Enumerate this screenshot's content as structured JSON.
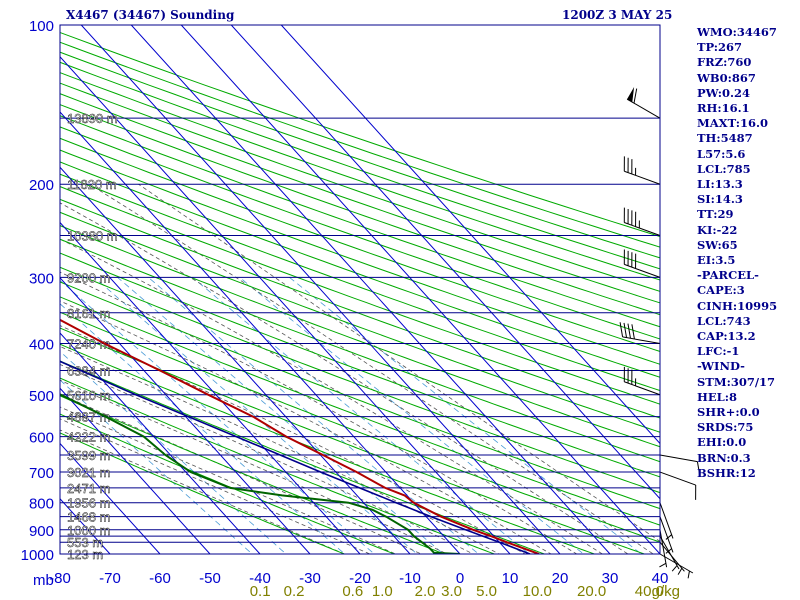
{
  "header": {
    "title_left": "X4467 (34467) Sounding",
    "title_right": "1200Z  3 MAY 25"
  },
  "indices": [
    "WMO:34467",
    "TP:267",
    "FRZ:760",
    "WB0:867",
    "PW:0.24",
    "RH:16.1",
    "MAXT:16.0",
    "TH:5487",
    "L57:5.6",
    "LCL:785",
    "LI:13.3",
    "SI:14.3",
    "TT:29",
    "KI:-22",
    "SW:65",
    "EI:3.5",
    "-PARCEL-",
    "CAPE:3",
    "CINH:10995",
    "LCL:743",
    "CAP:13.2",
    "LFC:-1",
    "-WIND-",
    "STM:307/17",
    "HEL:8",
    "SHR+:0.0",
    "SRDS:75",
    "EHI:0.0",
    "BRN:0.3",
    "BSHR:12"
  ],
  "colors": {
    "isobar": "#00008b",
    "isotherm": "#0000cd",
    "dry_adiabat": "#00aa00",
    "moist_adiabat": "#555555",
    "mixing_ratio": "#4a9bd6",
    "temperature": "#b00000",
    "dewpoint": "#006400",
    "parcel": "#00008b",
    "pressure_labels": "#0000cd",
    "temp_labels": "#0000cd",
    "mixing_labels": "#808000",
    "height_labels": "#ffffff",
    "wind_barbs": "#000000"
  },
  "chart_data": {
    "type": "skew-t",
    "pressure_axis_label": "mb",
    "pressure_range": [
      100,
      1000
    ],
    "pressure_labels": [
      100,
      200,
      300,
      400,
      500,
      600,
      700,
      800,
      900,
      1000
    ],
    "isobars": [
      100,
      150,
      200,
      250,
      300,
      350,
      400,
      450,
      500,
      550,
      600,
      650,
      700,
      750,
      800,
      850,
      900,
      925,
      950,
      1000
    ],
    "temperature_ticks": [
      -80,
      -70,
      -60,
      -50,
      -40,
      -30,
      -20,
      -10,
      0,
      10,
      20,
      30,
      40
    ],
    "temperature_tick_labels": [
      "-80",
      "-70",
      "-60",
      "-50",
      "-40",
      "-30",
      "-20",
      "-10",
      "0",
      "10",
      "20",
      "30",
      "40"
    ],
    "temperature_axis_range": [
      -80,
      40
    ],
    "mixing_ratio_labels": [
      "0.1",
      "0.2",
      "0.6",
      "1.0",
      "2.0",
      "3.0",
      "5.0",
      "10.0",
      "20.0",
      "40.0",
      "g/kg"
    ],
    "heights": [
      {
        "p": 150,
        "label": "13890 m"
      },
      {
        "p": 200,
        "label": "11820 m"
      },
      {
        "p": 250,
        "label": "10380 m"
      },
      {
        "p": 300,
        "label": "9200 m"
      },
      {
        "p": 350,
        "label": "8161 m"
      },
      {
        "p": 400,
        "label": "7240 m"
      },
      {
        "p": 450,
        "label": "6384 m"
      },
      {
        "p": 500,
        "label": "5610 m"
      },
      {
        "p": 550,
        "label": "4887 m"
      },
      {
        "p": 600,
        "label": "4222 m"
      },
      {
        "p": 650,
        "label": "3599 m"
      },
      {
        "p": 700,
        "label": "3021 m"
      },
      {
        "p": 750,
        "label": "2471 m"
      },
      {
        "p": 800,
        "label": "1956 m"
      },
      {
        "p": 850,
        "label": "1468 m"
      },
      {
        "p": 900,
        "label": "1000 m"
      },
      {
        "p": 950,
        "label": "553 m"
      },
      {
        "p": 1000,
        "label": "123 m"
      }
    ],
    "temperature_profile": [
      {
        "p": 1000,
        "t": 15.8
      },
      {
        "p": 950,
        "t": 11.5
      },
      {
        "p": 925,
        "t": 9.4
      },
      {
        "p": 900,
        "t": 7.0
      },
      {
        "p": 850,
        "t": 3.0
      },
      {
        "p": 800,
        "t": 0.0
      },
      {
        "p": 775,
        "t": -0.5
      },
      {
        "p": 750,
        "t": -3.0
      },
      {
        "p": 700,
        "t": -5.8
      },
      {
        "p": 650,
        "t": -9.5
      },
      {
        "p": 600,
        "t": -13.5
      },
      {
        "p": 550,
        "t": -16.5
      },
      {
        "p": 500,
        "t": -21.5
      },
      {
        "p": 450,
        "t": -26.8
      },
      {
        "p": 400,
        "t": -33.0
      },
      {
        "p": 350,
        "t": -39.0
      },
      {
        "p": 300,
        "t": -47.0
      },
      {
        "p": 275,
        "t": -50.0
      },
      {
        "p": 262,
        "t": -52.0
      },
      {
        "p": 250,
        "t": -52.3
      },
      {
        "p": 230,
        "t": -53.0
      },
      {
        "p": 210,
        "t": -54.0
      },
      {
        "p": 200,
        "t": -55.0
      },
      {
        "p": 190,
        "t": -53.0
      },
      {
        "p": 170,
        "t": -50.0
      },
      {
        "p": 150,
        "t": -51.0
      },
      {
        "p": 140,
        "t": -51.0
      },
      {
        "p": 120,
        "t": -52.0
      }
    ],
    "dewpoint_profile": [
      {
        "p": 1000,
        "t": 0.0
      },
      {
        "p": 995,
        "t": -5.0
      },
      {
        "p": 975,
        "t": -5.0
      },
      {
        "p": 925,
        "t": -6.0
      },
      {
        "p": 900,
        "t": -6.0
      },
      {
        "p": 850,
        "t": -8.0
      },
      {
        "p": 825,
        "t": -9.5
      },
      {
        "p": 800,
        "t": -13.0
      },
      {
        "p": 775,
        "t": -25.0
      },
      {
        "p": 750,
        "t": -34.0
      },
      {
        "p": 700,
        "t": -39.0
      },
      {
        "p": 650,
        "t": -41.0
      },
      {
        "p": 600,
        "t": -42.0
      },
      {
        "p": 550,
        "t": -46.0
      },
      {
        "p": 500,
        "t": -51.0
      },
      {
        "p": 450,
        "t": -56.0
      },
      {
        "p": 400,
        "t": -61.5
      },
      {
        "p": 350,
        "t": -66.0
      },
      {
        "p": 300,
        "t": -71.0
      },
      {
        "p": 250,
        "t": -76.0
      },
      {
        "p": 200,
        "t": -79.0
      },
      {
        "p": 180,
        "t": -80.0
      },
      {
        "p": 150,
        "t": -81.0
      },
      {
        "p": 120,
        "t": -81.5
      }
    ],
    "parcel_profile": [
      {
        "p": 1000,
        "t": 14.0
      },
      {
        "p": 950,
        "t": 10.0
      },
      {
        "p": 900,
        "t": 5.5
      },
      {
        "p": 850,
        "t": 1.0
      },
      {
        "p": 800,
        "t": -3.5
      },
      {
        "p": 700,
        "t": -13.0
      },
      {
        "p": 600,
        "t": -23.5
      },
      {
        "p": 500,
        "t": -36.0
      },
      {
        "p": 400,
        "t": -50.0
      },
      {
        "p": 300,
        "t": -67.0
      },
      {
        "p": 250,
        "t": -78.0
      },
      {
        "p": 200,
        "t": -91.0
      }
    ],
    "dry_adiabats_theta_k": [
      250,
      260,
      270,
      280,
      290,
      300,
      310,
      320,
      330,
      340,
      350,
      360,
      370,
      380,
      390,
      400,
      410,
      420,
      430,
      440,
      450,
      460,
      470,
      480,
      490,
      500,
      510,
      520,
      530,
      540,
      550
    ],
    "moist_adiabats_t1000": [
      -20,
      -15,
      -10,
      -5,
      0,
      5,
      10,
      15,
      20,
      25,
      30,
      35,
      40,
      45
    ],
    "mixing_ratio_lines": [
      0.1,
      0.2,
      0.6,
      1.0,
      2.0,
      3.0,
      5.0,
      10.0,
      20.0,
      40.0
    ],
    "wind_barbs": [
      {
        "p": 1000,
        "dir": 120,
        "spd": 5
      },
      {
        "p": 950,
        "dir": 140,
        "spd": 5
      },
      {
        "p": 925,
        "dir": 150,
        "spd": 5
      },
      {
        "p": 900,
        "dir": 170,
        "spd": 5
      },
      {
        "p": 850,
        "dir": 160,
        "spd": 5
      },
      {
        "p": 800,
        "dir": 160,
        "spd": 5
      },
      {
        "p": 700,
        "dir": 110,
        "spd": 10
      },
      {
        "p": 650,
        "dir": 100,
        "spd": 10
      },
      {
        "p": 500,
        "dir": 290,
        "spd": 35
      },
      {
        "p": 400,
        "dir": 280,
        "spd": 40
      },
      {
        "p": 300,
        "dir": 290,
        "spd": 40
      },
      {
        "p": 250,
        "dir": 290,
        "spd": 45
      },
      {
        "p": 200,
        "dir": 290,
        "spd": 35
      },
      {
        "p": 150,
        "dir": 300,
        "spd": 60
      }
    ]
  }
}
